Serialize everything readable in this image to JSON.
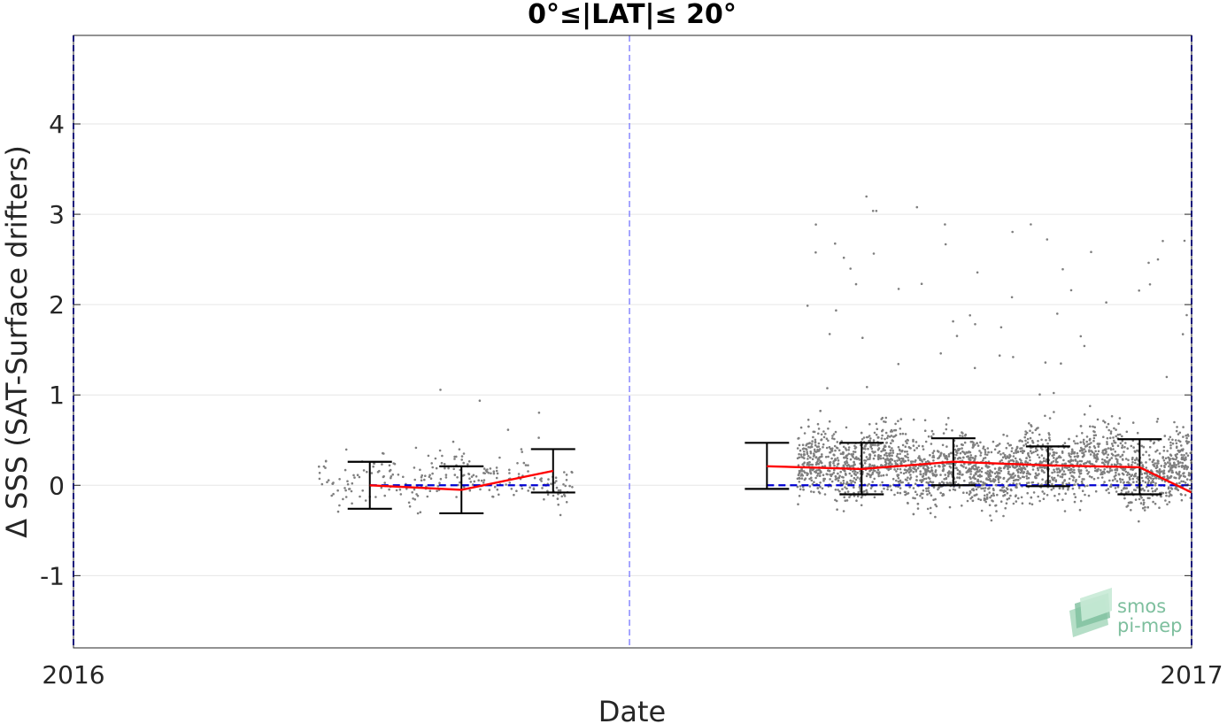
{
  "chart_data": {
    "type": "scatter",
    "title": "0°≤|LAT|≤ 20°",
    "xlabel": "Date",
    "ylabel": "Δ SSS (SAT-Surface drifters)",
    "x_range": [
      "2016-01-01",
      "2017-01-01"
    ],
    "x_tick_labels": [
      "2016",
      "2017"
    ],
    "ylim": [
      -1.8,
      4.98
    ],
    "y_ticks": [
      -1,
      0,
      1,
      2,
      3,
      4
    ],
    "y_tick_labels": [
      "-1",
      "0",
      "1",
      "2",
      "3",
      "4"
    ],
    "grid": "horizontal",
    "zero_line": {
      "value": 0,
      "style": "dashed",
      "color": "#0000d0"
    },
    "vertical_markers": [
      {
        "date": "2016-01-01",
        "color": "#0000d0"
      },
      {
        "date": "2016-07-01",
        "color": "#6a6aff"
      },
      {
        "date": "2017-01-01",
        "color": "#0000d0"
      }
    ],
    "scatter_clusters": [
      {
        "start": "2016-03-21",
        "end": "2016-06-13",
        "center": 0.08,
        "spread": 0.22,
        "density": "low"
      },
      {
        "start": "2016-08-25",
        "end": "2017-01-01",
        "center": 0.2,
        "spread": 0.35,
        "density": "high"
      }
    ],
    "series": [
      {
        "color": "#ff0000",
        "x": [
          "2016-04-07",
          "2016-05-07",
          "2016-06-06",
          "2016-08-15",
          "2016-09-15",
          "2016-10-15",
          "2016-11-15",
          "2016-12-15",
          "2017-01-01"
        ],
        "y": [
          0.0,
          -0.05,
          0.16,
          0.21,
          0.18,
          0.26,
          0.22,
          0.2,
          -0.08
        ],
        "err_low": [
          -0.26,
          -0.31,
          -0.08,
          -0.04,
          -0.1,
          0.0,
          -0.01,
          -0.1,
          null
        ],
        "err_high": [
          0.26,
          0.21,
          0.4,
          0.47,
          0.47,
          0.52,
          0.43,
          0.51,
          null
        ]
      }
    ],
    "colors": {
      "scatter": "#7f7f7f",
      "mean_line": "#ff0000",
      "error_bar": "#000000",
      "zero_line": "#0000d0",
      "grid": "#e6e6e6"
    }
  },
  "watermark": {
    "line1": "smos",
    "line2": "pi-mep",
    "color": "#7ebf9e"
  }
}
